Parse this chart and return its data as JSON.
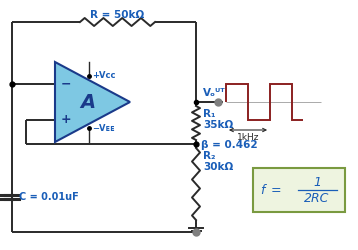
{
  "bg_color": "#ffffff",
  "blue_color": "#1a5eb8",
  "dark_color": "#2a2a2a",
  "red_color": "#8b2020",
  "green_fill": "#eef4e0",
  "green_border": "#7a9a40",
  "opamp_fill": "#7ec8e3",
  "opamp_stroke": "#1a3a8a",
  "dot_color": "#808080",
  "wire_color": "#2a2a2a",
  "R_label": "R = 50kΩ",
  "R1_label": "R₁",
  "R1_val": "35kΩ",
  "R2_label": "R₂",
  "R2_val": "30kΩ",
  "C_label": "C = 0.01uF",
  "beta_label": "β = 0.462",
  "Vcc_label": "+Vᴄᴄ",
  "Vee_label": "-Vᴇᴇ",
  "Vout_label": "Vₒᵁᵀ",
  "freq_label": "1kHz",
  "A_label": "A"
}
